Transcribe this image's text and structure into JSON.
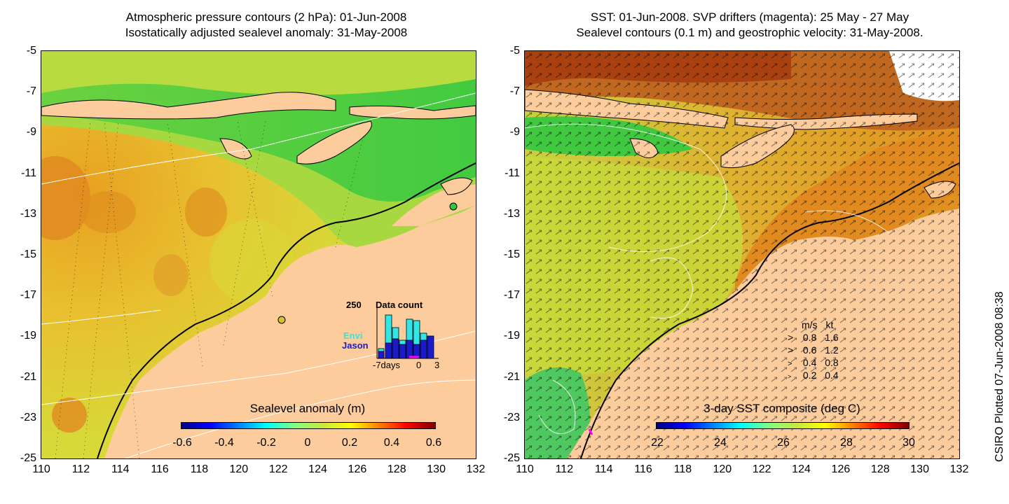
{
  "left_panel": {
    "title_line1": "Atmospheric pressure contours (2 hPa): 01-Jun-2008",
    "title_line2": "Isostatically adjusted sealevel anomaly: 31-May-2008",
    "colorbar": {
      "title": "Sealevel anomaly (m)",
      "ticks": [
        "-0.6",
        "-0.4",
        "-0.2",
        "0",
        "0.2",
        "0.4",
        "0.6"
      ]
    },
    "inset": {
      "max_label": "250",
      "title": "Data count",
      "series_envi": "Envi",
      "series_jason": "Jason",
      "x_label_left": "-7days",
      "x_label_zero": "0",
      "x_label_right": "3",
      "envi_color": "#33e6e6",
      "jason_color": "#1a1acc"
    }
  },
  "right_panel": {
    "title_line1": "SST: 01-Jun-2008. SVP drifters (magenta): 25 May - 27 May",
    "title_line2": "Sealevel contours (0.1 m) and geostrophic velocity: 31-May-2008.",
    "colorbar": {
      "title": "3-day SST composite (deg C)",
      "ticks": [
        "22",
        "24",
        "26",
        "28",
        "30"
      ]
    },
    "velocity_legend": {
      "header_ms": "m/s",
      "header_kt": "kt",
      "rows": [
        {
          "ms": "0.8",
          "kt": "1.6"
        },
        {
          "ms": "0.6",
          "kt": "1.2"
        },
        {
          "ms": "0.4",
          "kt": "0.8"
        },
        {
          "ms": "0.2",
          "kt": "0.4"
        }
      ]
    }
  },
  "axes": {
    "y_ticks": [
      "-5",
      "-7",
      "-9",
      "-11",
      "-13",
      "-15",
      "-17",
      "-19",
      "-21",
      "-23",
      "-25"
    ],
    "x_ticks": [
      "110",
      "112",
      "114",
      "116",
      "118",
      "120",
      "122",
      "124",
      "126",
      "128",
      "130",
      "132"
    ]
  },
  "credit": "CSIRO Plotted 07-Jun-2008 08:38",
  "colors": {
    "land": "#fccc9c",
    "left_sea_main": "#e6c030",
    "left_sea_green": "#3cc83c",
    "right_sea_main": "#c8c832",
    "right_sea_warm": "#e08a20",
    "right_sea_hot": "#b84a10"
  }
}
